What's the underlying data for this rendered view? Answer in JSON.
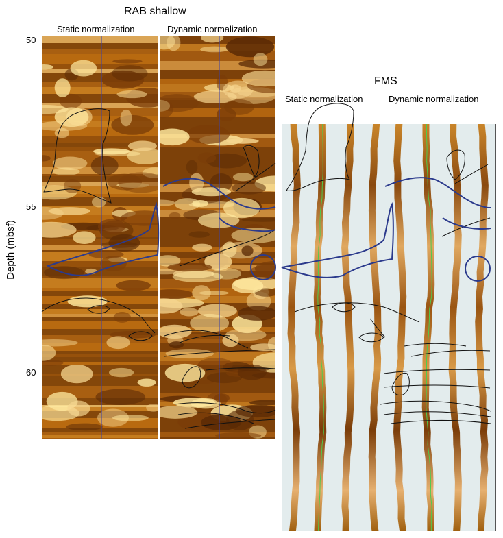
{
  "rab": {
    "title": "RAB shallow",
    "static_label": "Static normalization",
    "dynamic_label": "Dynamic normalization"
  },
  "fms": {
    "title": "FMS",
    "static_label": "Static normalization",
    "dynamic_label": "Dynamic normalization"
  },
  "depth_axis": {
    "label": "Depth (mbsf)",
    "ticks": [
      "50",
      "55",
      "60"
    ],
    "tick_values": [
      50,
      55,
      60
    ],
    "range": [
      50,
      62.1
    ]
  },
  "colors": {
    "image_dark": "#5a2a05",
    "image_mid": "#b86a10",
    "image_light": "#ffe9a0",
    "bed_lines": "#111111",
    "interpretation_lines": "#2b3a8c",
    "fms_background": "#e3eced",
    "trace_green": "#4ecb4e"
  }
}
